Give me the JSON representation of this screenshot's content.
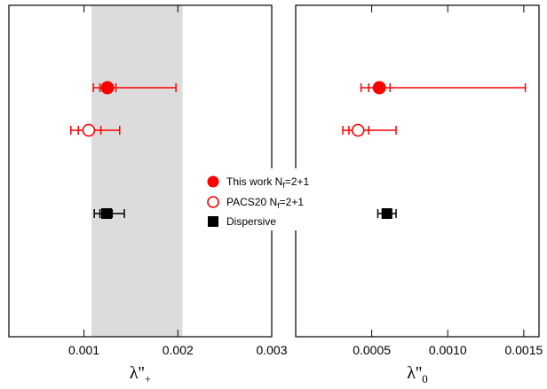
{
  "chart_data": [
    {
      "type": "scatter",
      "xlabel": "λ''",
      "xlabel_sub": "+",
      "xlim": [
        0.0002,
        0.003
      ],
      "x_ticks": [
        0.001,
        0.002,
        0.003
      ],
      "x_tick_labels": [
        "0.001",
        "0.002",
        "0.003"
      ],
      "grid": false,
      "band": {
        "x_min": 0.00108,
        "x_max": 0.00205,
        "color": "#dcdcdc"
      },
      "series": [
        {
          "name": "This work",
          "x": 0.00125,
          "x_err_inner": [
            0.00117,
            0.00134
          ],
          "x_err_outer": [
            0.0011,
            0.00198
          ],
          "marker": "filled-circle",
          "color": "#ff0000"
        },
        {
          "name": "PACS20",
          "x": 0.00105,
          "x_err_inner": [
            0.00094,
            0.00118
          ],
          "x_err_outer": [
            0.00086,
            0.00138
          ],
          "marker": "open-circle",
          "color": "#ff0000"
        },
        {
          "name": "Dispersive",
          "x": 0.00124,
          "x_err_inner": [
            0.00117,
            0.0013
          ],
          "x_err_outer": [
            0.00111,
            0.00143
          ],
          "marker": "filled-square",
          "color": "#000000"
        }
      ]
    },
    {
      "type": "scatter",
      "xlabel": "λ''",
      "xlabel_sub": "0",
      "xlim": [
        0.0,
        0.0016
      ],
      "x_ticks": [
        0.0005,
        0.001,
        0.0015
      ],
      "x_tick_labels": [
        "0.0005",
        "0.0010",
        "0.0015"
      ],
      "grid": false,
      "series": [
        {
          "name": "This work",
          "x": 0.00055,
          "x_err_inner": [
            0.00048,
            0.00062
          ],
          "x_err_outer": [
            0.00043,
            0.00151
          ],
          "marker": "filled-circle",
          "color": "#ff0000"
        },
        {
          "name": "PACS20",
          "x": 0.00041,
          "x_err_inner": [
            0.00035,
            0.00048
          ],
          "x_err_outer": [
            0.00031,
            0.00066
          ],
          "marker": "open-circle",
          "color": "#ff0000"
        },
        {
          "name": "Dispersive",
          "x": 0.0006,
          "x_err_inner": [
            0.00057,
            0.00063
          ],
          "x_err_outer": [
            0.00054,
            0.00066
          ],
          "marker": "filled-square",
          "color": "#000000"
        }
      ]
    }
  ],
  "legend": {
    "placement": "center",
    "entries": [
      {
        "label": "This work N",
        "sub": "f",
        "suffix": "=2+1",
        "marker": "filled-circle",
        "color": "#ff0000"
      },
      {
        "label": "PACS20 N",
        "sub": "f",
        "suffix": "=2+1",
        "marker": "open-circle",
        "color": "#ff0000"
      },
      {
        "label": "Dispersive",
        "sub": "",
        "suffix": "",
        "marker": "filled-square",
        "color": "#000000"
      }
    ]
  }
}
